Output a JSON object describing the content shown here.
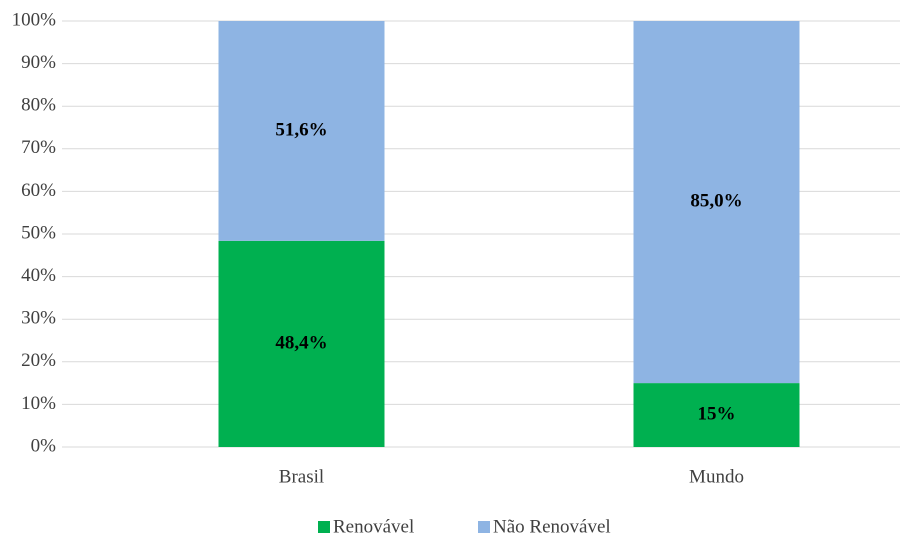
{
  "chart_data": {
    "type": "stacked_bar",
    "categories": [
      "Brasil",
      "Mundo"
    ],
    "series": [
      {
        "name": "Renovável",
        "color": "#00b050",
        "values": [
          48.4,
          15
        ],
        "value_labels": [
          "48,4%",
          "15%"
        ]
      },
      {
        "name": "Não Renovável",
        "color": "#8eb4e3",
        "values": [
          51.6,
          85
        ],
        "value_labels": [
          "51,6%",
          "85,0%"
        ]
      }
    ],
    "ylim": [
      0,
      100
    ],
    "yticks": [
      {
        "value": 0,
        "label": "0%"
      },
      {
        "value": 10,
        "label": "10%"
      },
      {
        "value": 20,
        "label": "20%"
      },
      {
        "value": 30,
        "label": "30%"
      },
      {
        "value": 40,
        "label": "40%"
      },
      {
        "value": 50,
        "label": "50%"
      },
      {
        "value": 60,
        "label": "60%"
      },
      {
        "value": 70,
        "label": "70%"
      },
      {
        "value": 80,
        "label": "80%"
      },
      {
        "value": 90,
        "label": "90%"
      },
      {
        "value": 100,
        "label": "100%"
      }
    ],
    "grid": true,
    "legend": "bottom"
  }
}
